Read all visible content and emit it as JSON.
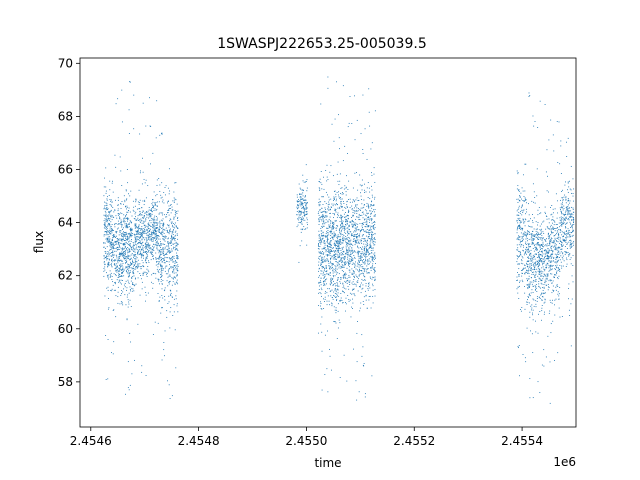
{
  "chart_data": {
    "type": "scatter",
    "title": "1SWASPJ222653.25-005039.5",
    "xlabel": "time",
    "ylabel": "flux",
    "x_offset_label": "1e6",
    "xlim": [
      2454580,
      2455500
    ],
    "ylim": [
      56.3,
      70.2
    ],
    "grid": false,
    "legend": "none",
    "point_color": "#1f77b4",
    "x_ticks": [
      {
        "value": 2454600,
        "label": "2.4546"
      },
      {
        "value": 2454800,
        "label": "2.4548"
      },
      {
        "value": 2455000,
        "label": "2.4550"
      },
      {
        "value": 2455200,
        "label": "2.4552"
      },
      {
        "value": 2455400,
        "label": "2.4554"
      }
    ],
    "y_ticks": [
      {
        "value": 58,
        "label": "58"
      },
      {
        "value": 60,
        "label": "60"
      },
      {
        "value": 62,
        "label": "62"
      },
      {
        "value": 64,
        "label": "64"
      },
      {
        "value": 66,
        "label": "66"
      },
      {
        "value": 68,
        "label": "68"
      },
      {
        "value": 70,
        "label": "70"
      }
    ],
    "segments": [
      {
        "x_start": 2454624,
        "x_end": 2454640,
        "center": 63.5,
        "spread": 0.9,
        "outlier_min": 57.1,
        "outlier_max": 67.2,
        "count": 260
      },
      {
        "x_start": 2454640,
        "x_end": 2454682,
        "center": 63.0,
        "spread": 0.9,
        "outlier_min": 57.5,
        "outlier_max": 69.4,
        "count": 650
      },
      {
        "x_start": 2454682,
        "x_end": 2454708,
        "center": 63.3,
        "spread": 0.8,
        "outlier_min": 58.0,
        "outlier_max": 68.5,
        "count": 380
      },
      {
        "x_start": 2454708,
        "x_end": 2454724,
        "center": 63.7,
        "spread": 0.7,
        "outlier_min": 58.5,
        "outlier_max": 69.1,
        "count": 220
      },
      {
        "x_start": 2454724,
        "x_end": 2454762,
        "center": 63.0,
        "spread": 1.1,
        "outlier_min": 57.0,
        "outlier_max": 67.8,
        "count": 520
      },
      {
        "x_start": 2454982,
        "x_end": 2455002,
        "center": 64.6,
        "spread": 0.5,
        "outlier_min": 62.0,
        "outlier_max": 66.5,
        "count": 160
      },
      {
        "x_start": 2455022,
        "x_end": 2455070,
        "center": 63.0,
        "spread": 1.2,
        "outlier_min": 57.4,
        "outlier_max": 69.5,
        "count": 850
      },
      {
        "x_start": 2455070,
        "x_end": 2455128,
        "center": 63.2,
        "spread": 1.0,
        "outlier_min": 57.1,
        "outlier_max": 69.2,
        "count": 900
      },
      {
        "x_start": 2455390,
        "x_end": 2455408,
        "center": 63.5,
        "spread": 1.1,
        "outlier_min": 57.8,
        "outlier_max": 66.2,
        "count": 220
      },
      {
        "x_start": 2455408,
        "x_end": 2455442,
        "center": 62.5,
        "spread": 1.0,
        "outlier_min": 57.2,
        "outlier_max": 69.0,
        "count": 480
      },
      {
        "x_start": 2455442,
        "x_end": 2455470,
        "center": 62.8,
        "spread": 0.9,
        "outlier_min": 57.0,
        "outlier_max": 68.5,
        "count": 360
      },
      {
        "x_start": 2455470,
        "x_end": 2455496,
        "center": 63.8,
        "spread": 0.8,
        "outlier_min": 59.0,
        "outlier_max": 67.9,
        "count": 300
      }
    ]
  }
}
